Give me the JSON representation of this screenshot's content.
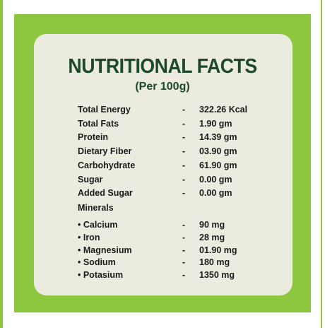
{
  "header": {
    "title": "NUTRITIONAL FACTS",
    "subtitle": "(Per 100g)"
  },
  "facts": [
    {
      "label": "Total Energy",
      "dash": "-",
      "value": "322.26 Kcal"
    },
    {
      "label": "Total Fats",
      "dash": "-",
      "value": "1.90 gm"
    },
    {
      "label": "Protein",
      "dash": "-",
      "value": "14.39 gm"
    },
    {
      "label": "Dietary Fiber",
      "dash": "-",
      "value": "03.90 gm"
    },
    {
      "label": "Carbohydrate",
      "dash": "-",
      "value": "61.90 gm"
    },
    {
      "label": "Sugar",
      "dash": "-",
      "value": "0.00 gm"
    },
    {
      "label": "Added Sugar",
      "dash": "-",
      "value": "0.00 gm"
    }
  ],
  "minerals_heading": "Minerals",
  "minerals": [
    {
      "label": "• Calcium",
      "dash": "-",
      "value": "90 mg"
    },
    {
      "label": "• Iron",
      "dash": "-",
      "value": "28 mg"
    },
    {
      "label": "• Magnesium",
      "dash": "-",
      "value": "01.90 mg"
    },
    {
      "label": "• Sodium",
      "dash": "-",
      "value": "180 mg"
    },
    {
      "label": "• Potasium",
      "dash": "-",
      "value": "1350 mg"
    }
  ],
  "colors": {
    "accent_green": "#8dc63f",
    "card_background": "#ecebdf",
    "title_color": "#1c4a2a"
  }
}
